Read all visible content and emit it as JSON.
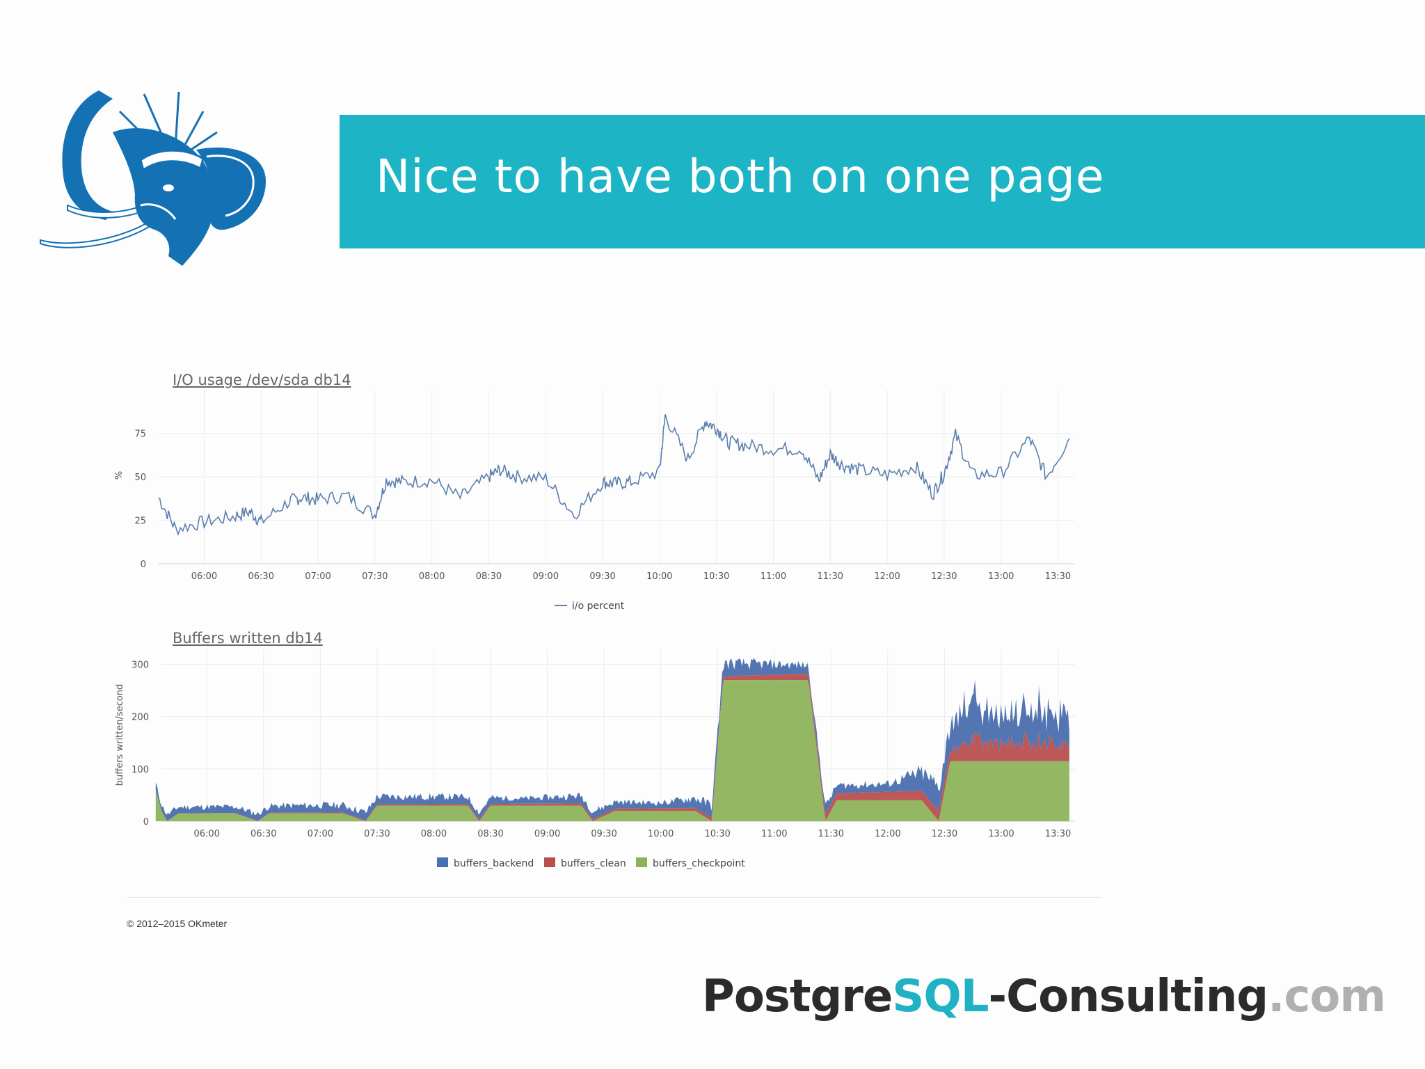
{
  "slide": {
    "title": "Nice to have both on one page",
    "copyright": "© 2012–2015 OKmeter",
    "brand": {
      "part1": "Postgre",
      "part2": "SQL",
      "part3": "-Consulting",
      "part4": ".com"
    },
    "colors": {
      "accent": "#1db5c6",
      "logo": "#1472b4"
    },
    "logo_icon": "elephant-statue-of-liberty-logo"
  },
  "chart_data": [
    {
      "type": "line",
      "title": "I/O usage /dev/sda db14",
      "ylabel": "%",
      "xlabel": "",
      "ylim": [
        0,
        100
      ],
      "yticks": [
        "0",
        "25",
        "50",
        "75"
      ],
      "xticks": [
        "06:00",
        "06:30",
        "07:00",
        "07:30",
        "08:00",
        "08:30",
        "09:00",
        "09:30",
        "10:00",
        "10:30",
        "11:00",
        "11:30",
        "12:00",
        "12:30",
        "13:00",
        "13:30"
      ],
      "legend": [
        "i/o percent"
      ],
      "series": [
        {
          "name": "i/o percent",
          "color": "#5b7fad",
          "x": [
            5.6,
            5.75,
            6.0,
            6.25,
            6.4,
            6.5,
            6.75,
            6.85,
            7.0,
            7.25,
            7.5,
            7.6,
            7.75,
            8.0,
            8.25,
            8.5,
            8.6,
            8.75,
            9.0,
            9.25,
            9.5,
            9.6,
            9.75,
            10.0,
            10.05,
            10.25,
            10.4,
            10.5,
            10.6,
            10.75,
            11.0,
            11.25,
            11.4,
            11.5,
            11.6,
            11.75,
            12.0,
            12.25,
            12.4,
            12.5,
            12.6,
            12.75,
            13.0,
            13.25,
            13.4,
            13.6
          ],
          "values": [
            38,
            20,
            24,
            27,
            30,
            24,
            36,
            38,
            37,
            39,
            28,
            48,
            47,
            48,
            38,
            50,
            54,
            50,
            49,
            28,
            47,
            46,
            47,
            53,
            85,
            60,
            82,
            78,
            70,
            68,
            66,
            66,
            48,
            63,
            57,
            54,
            51,
            56,
            40,
            52,
            74,
            51,
            52,
            72,
            50,
            72
          ]
        }
      ]
    },
    {
      "type": "area",
      "title": "Buffers written db14",
      "ylabel": "buffers written/second",
      "xlabel": "",
      "ylim": [
        0,
        330
      ],
      "yticks": [
        "0",
        "100",
        "200",
        "300"
      ],
      "xticks": [
        "06:00",
        "06:30",
        "07:00",
        "07:30",
        "08:00",
        "08:30",
        "09:00",
        "09:30",
        "10:00",
        "10:30",
        "11:00",
        "11:30",
        "12:00",
        "12:30",
        "13:00",
        "13:30"
      ],
      "legend": [
        "buffers_backend",
        "buffers_clean",
        "buffers_checkpoint"
      ],
      "series": [
        {
          "name": "buffers_checkpoint",
          "color": "#8db35a",
          "x": [
            5.55,
            5.6,
            5.65,
            5.75,
            6.25,
            6.45,
            6.55,
            7.2,
            7.4,
            7.5,
            8.3,
            8.4,
            8.5,
            9.3,
            9.4,
            9.6,
            10.3,
            10.45,
            10.55,
            11.3,
            11.45,
            11.55,
            12.3,
            12.45,
            12.55,
            13.3,
            13.6
          ],
          "values": [
            60,
            20,
            0,
            15,
            15,
            0,
            15,
            15,
            0,
            30,
            30,
            0,
            30,
            30,
            0,
            20,
            20,
            0,
            270,
            270,
            0,
            40,
            40,
            0,
            115,
            115,
            115
          ]
        },
        {
          "name": "buffers_clean",
          "color": "#b84f4f",
          "x": [
            5.6,
            10.2,
            12.6,
            12.75,
            13.0,
            13.3,
            13.6
          ],
          "values": [
            0,
            5,
            20,
            40,
            30,
            40,
            30
          ]
        },
        {
          "name": "buffers_backend",
          "color": "#4a6fae",
          "x": [
            5.6,
            6.2,
            6.9,
            7.6,
            8.2,
            8.8,
            9.3,
            10.0,
            10.5,
            11.0,
            11.4,
            12.0,
            12.6,
            12.7,
            13.0,
            13.3,
            13.6
          ],
          "values": [
            12,
            12,
            14,
            15,
            14,
            10,
            15,
            10,
            25,
            20,
            15,
            15,
            55,
            80,
            50,
            70,
            50
          ]
        }
      ]
    }
  ]
}
